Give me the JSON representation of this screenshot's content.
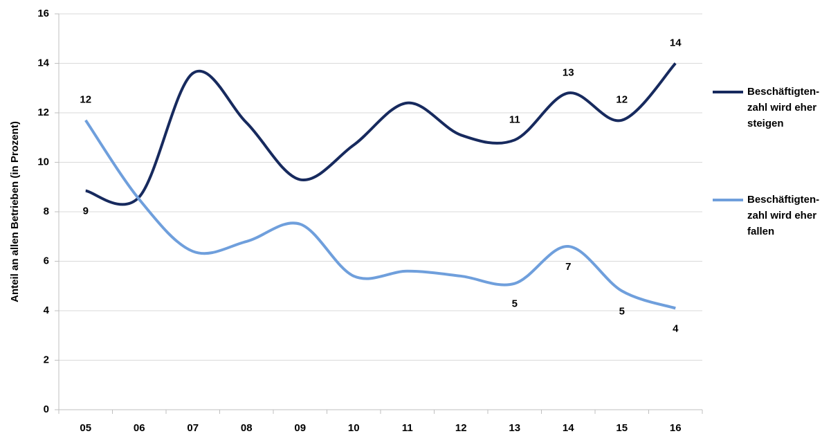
{
  "chart_data": {
    "type": "line",
    "y_label": "Anteil an allen Betrieben (in Prozent)",
    "categories": [
      "05",
      "06",
      "07",
      "08",
      "09",
      "10",
      "11",
      "12",
      "13",
      "14",
      "15",
      "16"
    ],
    "series": [
      {
        "name": "Beschäftigten-zahl wird eher steigen",
        "color": "#172a5e",
        "values": [
          8.85,
          8.6,
          13.6,
          11.6,
          9.3,
          10.7,
          12.4,
          11.1,
          10.9,
          12.8,
          11.7,
          14.0
        ],
        "value_labels": [
          "9",
          null,
          null,
          null,
          null,
          null,
          null,
          null,
          "11",
          "13",
          "12",
          "14"
        ]
      },
      {
        "name": "Beschäftigten-zahl wird eher fallen",
        "color": "#6f9fdc",
        "values": [
          11.7,
          8.5,
          6.4,
          6.8,
          7.5,
          5.4,
          5.6,
          5.4,
          5.1,
          6.6,
          4.8,
          4.1
        ],
        "value_labels": [
          "12",
          null,
          null,
          null,
          null,
          null,
          null,
          null,
          "5",
          "7",
          "5",
          "4"
        ]
      }
    ],
    "ylim": [
      0,
      16
    ],
    "yticks": [
      0,
      2,
      4,
      6,
      8,
      10,
      12,
      14,
      16
    ],
    "grid": true,
    "legend": "right"
  }
}
